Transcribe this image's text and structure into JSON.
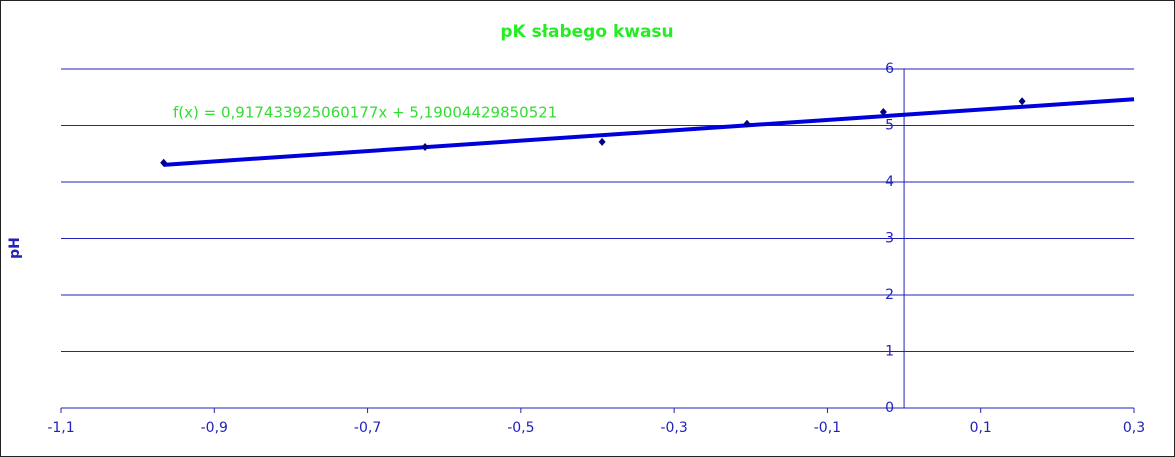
{
  "chart_data": {
    "type": "scatter",
    "title": "pK słabego kwasu",
    "y_label": "pH",
    "series": [
      {
        "color": "#000080",
        "x": [
          -0.966,
          -0.625,
          -0.394,
          -0.205,
          -0.027,
          0.154
        ],
        "values": [
          4.34,
          4.62,
          4.71,
          5.03,
          5.24,
          5.43
        ]
      }
    ],
    "trendline": {
      "label": "f(x) = 0,917433925060177x + 5,19004429850521",
      "slope": 0.917433925060177,
      "intercept": 5.19004429850521,
      "color": "#0000dd"
    },
    "xlim": [
      -1.1,
      0.3
    ],
    "xticks": [
      {
        "value": -1.1,
        "label": "-1,1"
      },
      {
        "value": -0.9,
        "label": "-0,9"
      },
      {
        "value": -0.7,
        "label": "-0,7"
      },
      {
        "value": -0.5,
        "label": "-0,5"
      },
      {
        "value": -0.3,
        "label": "-0,3"
      },
      {
        "value": -0.1,
        "label": "-0,1"
      },
      {
        "value": 0.1,
        "label": "0,1"
      },
      {
        "value": 0.3,
        "label": "0,3"
      }
    ],
    "ylim": [
      0,
      6
    ],
    "yticks": [
      0,
      1,
      2,
      3,
      4,
      5,
      6
    ],
    "grid": true
  }
}
